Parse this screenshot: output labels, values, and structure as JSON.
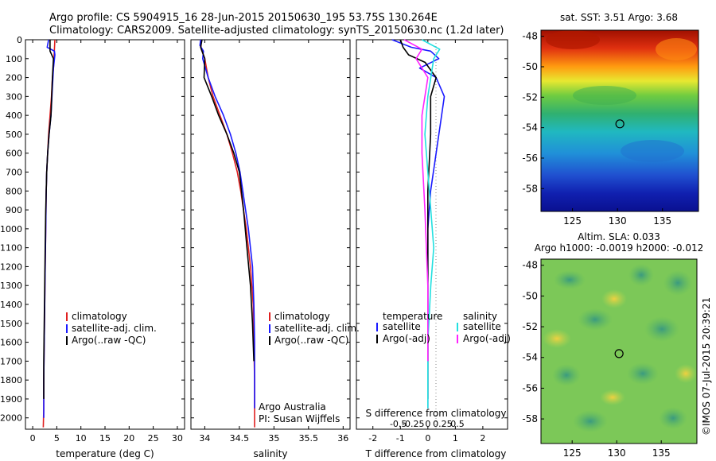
{
  "header": {
    "line1": "Argo profile: CS 5904915_16 28-Jun-2015 20150630_195 53.75S 130.264E",
    "line2": "Climatology: CARS2009. Satellite-adjusted climatology: synTS_20150630.nc (1.2d later)"
  },
  "colors": {
    "climatology": "#e02020",
    "satellite": "#1a1aff",
    "argo": "#000000",
    "satellite_s": "#22e0e0",
    "argo_s": "#ff22ff"
  },
  "chart_data": [
    {
      "type": "line",
      "name": "temperature-profile",
      "xlabel": "temperature (deg C)",
      "xlim": [
        -1.5,
        31.5
      ],
      "xticks": [
        0,
        5,
        10,
        15,
        20,
        25,
        30
      ],
      "ylim": [
        2060,
        0
      ],
      "yticks": [
        0,
        100,
        200,
        300,
        400,
        500,
        600,
        700,
        800,
        900,
        1000,
        1100,
        1200,
        1300,
        1400,
        1500,
        1600,
        1700,
        1800,
        1900,
        2000
      ],
      "legend": [
        "climatology",
        "satellite-adj. clim.",
        "Argo(..raw -QC)"
      ],
      "legend_placement": "center-right",
      "series": [
        {
          "name": "climatology",
          "x": [
            4.6,
            4.5,
            4.4,
            4.3,
            4.1,
            3.9,
            3.6,
            3.3,
            3.1,
            2.9,
            2.8,
            2.7,
            2.6,
            2.5,
            2.4,
            2.3,
            2.3,
            2.2
          ],
          "y": [
            0,
            50,
            100,
            150,
            200,
            300,
            400,
            500,
            600,
            700,
            800,
            1000,
            1200,
            1400,
            1600,
            1800,
            1950,
            2050
          ]
        },
        {
          "name": "satellite-adj. clim.",
          "x": [
            3.3,
            3.0,
            4.5,
            4.6,
            4.3,
            4.1,
            3.8,
            3.4,
            3.1,
            2.9,
            2.8,
            2.7,
            2.6,
            2.5,
            2.4,
            2.3,
            2.3
          ],
          "y": [
            0,
            40,
            60,
            80,
            150,
            250,
            400,
            500,
            600,
            700,
            800,
            1000,
            1200,
            1400,
            1600,
            1800,
            2000
          ]
        },
        {
          "name": "Argo(..raw -QC)",
          "x": [
            3.6,
            3.6,
            4.3,
            4.1,
            3.8,
            3.4,
            3.1,
            2.9,
            2.7,
            2.6,
            2.5,
            2.4,
            2.3,
            2.3
          ],
          "y": [
            0,
            60,
            100,
            200,
            400,
            500,
            600,
            700,
            900,
            1100,
            1300,
            1500,
            1700,
            1900
          ]
        }
      ]
    },
    {
      "type": "line",
      "name": "salinity-profile",
      "xlabel": "salinity",
      "xlim": [
        33.8,
        36.1
      ],
      "xticks": [
        34,
        34.5,
        35,
        35.5,
        36
      ],
      "ylim": [
        2060,
        0
      ],
      "legend": [
        "climatology",
        "satellite-adj. clim.",
        "Argo(..raw -QC)"
      ],
      "legend_placement": "center-right",
      "annotations": [
        "Argo Australia",
        "PI: Susan Wijffels"
      ],
      "series": [
        {
          "name": "climatology",
          "x": [
            33.94,
            33.95,
            34.0,
            34.05,
            34.12,
            34.22,
            34.32,
            34.4,
            34.47,
            34.52,
            34.56,
            34.6,
            34.63,
            34.66,
            34.68,
            34.7,
            34.71,
            34.72,
            34.72
          ],
          "y": [
            0,
            50,
            100,
            200,
            300,
            400,
            500,
            600,
            700,
            800,
            900,
            1000,
            1100,
            1200,
            1300,
            1400,
            1600,
            1800,
            2050
          ]
        },
        {
          "name": "satellite-adj. clim.",
          "x": [
            33.94,
            33.93,
            33.98,
            33.97,
            34.05,
            34.15,
            34.27,
            34.37,
            34.45,
            34.51,
            34.55,
            34.59,
            34.63,
            34.66,
            34.69,
            34.71,
            34.72,
            34.72,
            34.72
          ],
          "y": [
            0,
            30,
            60,
            100,
            200,
            300,
            400,
            500,
            600,
            700,
            800,
            900,
            1000,
            1100,
            1200,
            1400,
            1600,
            1800,
            1950
          ]
        },
        {
          "name": "Argo(..raw -QC)",
          "x": [
            33.96,
            33.94,
            34.0,
            33.99,
            34.1,
            34.2,
            34.32,
            34.42,
            34.5,
            34.56,
            34.61,
            34.66,
            34.69,
            34.71
          ],
          "y": [
            0,
            40,
            100,
            200,
            300,
            400,
            500,
            600,
            700,
            900,
            1100,
            1300,
            1500,
            1700
          ]
        }
      ]
    },
    {
      "type": "line",
      "name": "difference-from-climatology",
      "xlabel": "T difference from climatology",
      "x2label": "S difference from climatology",
      "xlim": [
        -2.6,
        2.9
      ],
      "xticks": [
        -2,
        -1,
        0,
        1,
        2
      ],
      "x2ticks": [
        -0.5,
        -0.25,
        0,
        0.25,
        0.5
      ],
      "x2tick_labels": [
        "-0.5",
        "-0.25",
        "0",
        "0.25",
        "0.5"
      ],
      "ylim": [
        2060,
        0
      ],
      "legend_left": {
        "title": "temperature",
        "items": [
          "satellite",
          "Argo(-adj)"
        ]
      },
      "legend_right": {
        "title": "salinity",
        "items": [
          "satellite",
          "Argo(-adj)"
        ]
      },
      "series": [
        {
          "name": "T satellite",
          "x": [
            -1.3,
            -0.6,
            0.1,
            0.4,
            -0.3,
            0.3,
            0.6,
            0.5,
            0.3,
            0.1,
            0.0,
            0.0,
            0.0,
            0.0,
            0.0
          ],
          "y": [
            0,
            40,
            60,
            100,
            150,
            200,
            300,
            400,
            600,
            800,
            1000,
            1200,
            1500,
            1800,
            1950
          ]
        },
        {
          "name": "T Argo(-adj)",
          "x": [
            -1.0,
            -0.9,
            -0.7,
            -0.1,
            0.3,
            0.1,
            0.1,
            0.0,
            0.0,
            0.0,
            0.0
          ],
          "y": [
            0,
            40,
            80,
            120,
            200,
            300,
            500,
            800,
            1100,
            1500,
            1900
          ]
        },
        {
          "name": "S satellite",
          "x": [
            -0.1,
            0.2,
            0.1,
            0.05,
            0.0,
            -0.05,
            0.0,
            0.05,
            0.1,
            0.05,
            0.0,
            0.0
          ],
          "y": [
            0,
            50,
            100,
            200,
            300,
            500,
            700,
            900,
            1100,
            1300,
            1600,
            1950
          ]
        },
        {
          "name": "S Argo(-adj)",
          "x": [
            -0.4,
            -0.1,
            -0.2,
            0.0,
            -0.1,
            -0.1,
            -0.05,
            0.0,
            0.0
          ],
          "y": [
            0,
            50,
            100,
            200,
            400,
            600,
            900,
            1300,
            1700
          ]
        }
      ]
    },
    {
      "type": "heatmap",
      "name": "sst-map",
      "title": "sat. SST: 3.51  Argo: 3.68",
      "xlim": [
        121.5,
        139.0
      ],
      "ylim": [
        -59.5,
        -47.6
      ],
      "xticks": [
        125,
        130,
        135
      ],
      "yticks": [
        -48,
        -50,
        -52,
        -54,
        -56,
        -58
      ],
      "marker": {
        "lon": 130.264,
        "lat": -53.75
      }
    },
    {
      "type": "heatmap",
      "name": "sla-map",
      "title": "Altim. SLA: 0.033",
      "subtitle": "Argo h1000: -0.0019  h2000: -0.012",
      "xlim": [
        121.5,
        139.0
      ],
      "ylim": [
        -59.6,
        -47.6
      ],
      "xticks": [
        125,
        130,
        135
      ],
      "yticks": [
        -48,
        -50,
        -52,
        -54,
        -56,
        -58
      ],
      "marker": {
        "lon": 130.264,
        "lat": -53.75
      }
    }
  ],
  "watermark": "©IMOS 07-Jul-2015 20:39:21"
}
